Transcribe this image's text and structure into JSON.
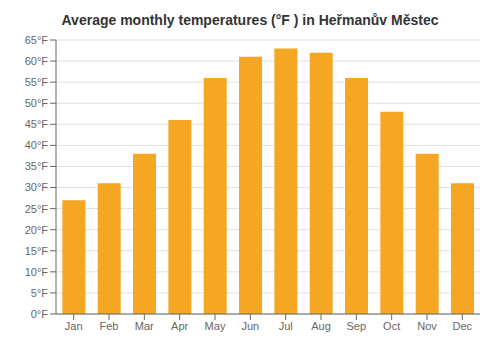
{
  "chart_data": {
    "type": "bar",
    "title": "Average monthly temperatures (°F ) in Heřmanův Městec",
    "categories": [
      "Jan",
      "Feb",
      "Mar",
      "Apr",
      "May",
      "Jun",
      "Jul",
      "Aug",
      "Sep",
      "Oct",
      "Nov",
      "Dec"
    ],
    "values": [
      27,
      31,
      38,
      46,
      56,
      61,
      63,
      62,
      56,
      48,
      38,
      31
    ],
    "color": "#F5A623",
    "ylim": [
      0,
      65
    ],
    "yticks": [
      {
        "value": 0,
        "label": "0°F"
      },
      {
        "value": 5,
        "label": "5°F"
      },
      {
        "value": 10,
        "label": "10°F"
      },
      {
        "value": 15,
        "label": "15°F"
      },
      {
        "value": 20,
        "label": "20°F"
      },
      {
        "value": 25,
        "label": "25°F"
      },
      {
        "value": 30,
        "label": "30°F"
      },
      {
        "value": 35,
        "label": "35°F"
      },
      {
        "value": 40,
        "label": "40°F"
      },
      {
        "value": 45,
        "label": "45°F"
      },
      {
        "value": 50,
        "label": "50°F"
      },
      {
        "value": 55,
        "label": "55°F"
      },
      {
        "value": 60,
        "label": "60°F"
      },
      {
        "value": 65,
        "label": "65°F"
      }
    ],
    "grid": true
  }
}
